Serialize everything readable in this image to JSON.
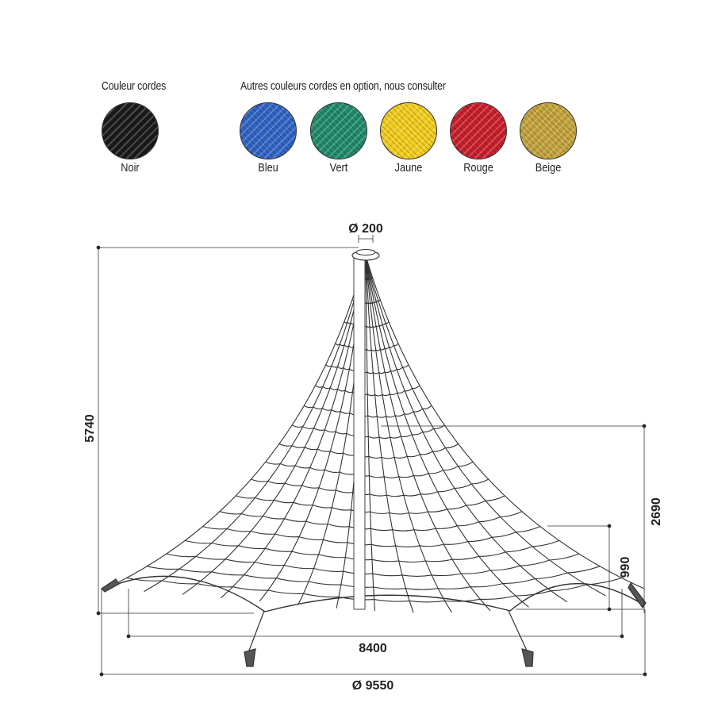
{
  "header": {
    "standard_label": "Couleur cordes",
    "options_label": "Autres couleurs cordes en option, nous consulter"
  },
  "swatches": [
    {
      "name": "Noir",
      "color": "#1a1a1a"
    },
    {
      "name": "Bleu",
      "color": "#2f63c4"
    },
    {
      "name": "Vert",
      "color": "#1f8a6a"
    },
    {
      "name": "Jaune",
      "color": "#f2cc1a"
    },
    {
      "name": "Rouge",
      "color": "#c81e2a"
    },
    {
      "name": "Beige",
      "color": "#c2a23a"
    }
  ],
  "dimensions": {
    "top_diameter": "Ø 200",
    "height": "5740",
    "platform_height": "2690",
    "lower_height": "990",
    "inner_width": "8400",
    "outer_diameter": "Ø 9550"
  }
}
